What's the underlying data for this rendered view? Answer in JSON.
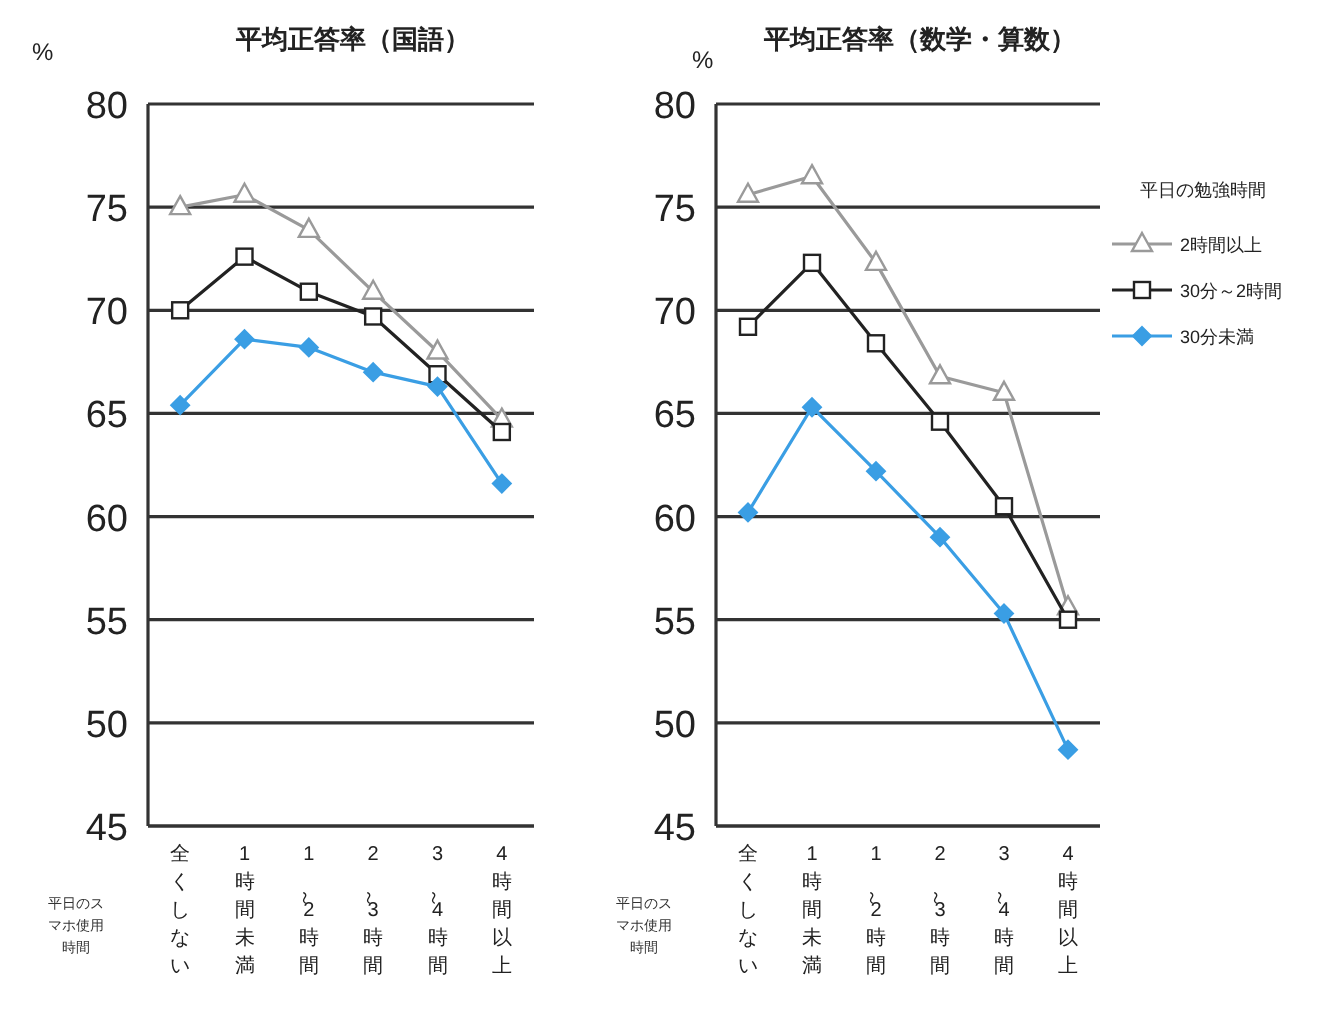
{
  "chart_data": [
    {
      "type": "line",
      "title": "平均正答率（国語）",
      "ylabel": "%",
      "xlabel": "平日のスマホ使用時間",
      "categories": [
        "全くしない",
        "1時間未満",
        "1～2時間",
        "2～3時間",
        "3～4時間",
        "4時間以上"
      ],
      "ylim": [
        45,
        80
      ],
      "yticks": [
        45,
        50,
        55,
        60,
        65,
        70,
        75,
        80
      ],
      "grid": "y",
      "legend": false,
      "series": [
        {
          "color": "#9a9a9a",
          "marker": "triangle",
          "values": [
            75.0,
            75.6,
            73.9,
            70.9,
            68.0,
            64.7
          ]
        },
        {
          "color": "#222222",
          "marker": "square",
          "values": [
            70.0,
            72.6,
            70.9,
            69.7,
            66.9,
            64.1
          ]
        },
        {
          "color": "#3a9ee4",
          "marker": "diamond",
          "values": [
            65.4,
            68.6,
            68.2,
            67.0,
            66.3,
            61.6
          ]
        }
      ]
    },
    {
      "type": "line",
      "title": "平均正答率（数学・算数）",
      "ylabel": "%",
      "xlabel": "平日のスマホ使用時間",
      "categories": [
        "全くしない",
        "1時間未満",
        "1～2時間",
        "2～3時間",
        "3～4時間",
        "4時間以上"
      ],
      "ylim": [
        45,
        80
      ],
      "yticks": [
        45,
        50,
        55,
        60,
        65,
        70,
        75,
        80
      ],
      "grid": "y",
      "legend": "right",
      "legend_title": "平日の勉強時間",
      "series": [
        {
          "name": "2時間以上",
          "color": "#9a9a9a",
          "marker": "triangle",
          "values": [
            75.6,
            76.5,
            72.3,
            66.8,
            66.0,
            55.6
          ]
        },
        {
          "name": "30分～2時間",
          "color": "#222222",
          "marker": "square",
          "values": [
            69.2,
            72.3,
            68.4,
            64.6,
            60.5,
            55.0
          ]
        },
        {
          "name": "30分未満",
          "color": "#3a9ee4",
          "marker": "diamond",
          "values": [
            60.2,
            65.3,
            62.2,
            59.0,
            55.3,
            48.7
          ]
        }
      ]
    }
  ]
}
